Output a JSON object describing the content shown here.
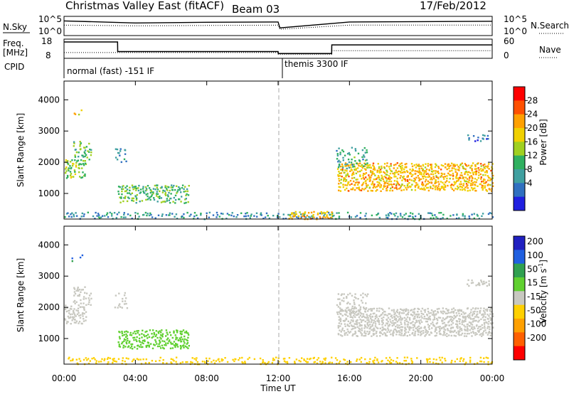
{
  "header": {
    "title": "Christmas Valley East (fitACF)",
    "beam": "Beam 03",
    "date": "17/Feb/2012"
  },
  "colors": {
    "power_scale": [
      "#2020e0",
      "#3070c0",
      "#40a0a0",
      "#30b060",
      "#a0d020",
      "#f0d000",
      "#ffa000",
      "#ff5000",
      "#ff0000"
    ],
    "velocity_scale": [
      "#2020c0",
      "#2060e0",
      "#30a050",
      "#60d030",
      "#c8c8c0",
      "#ffd000",
      "#ffa000",
      "#ff6000",
      "#ff0000"
    ]
  },
  "chart_data": [
    {
      "type": "line",
      "panel": "N.Sky / N.Search",
      "left_label": "N.Sky",
      "left_ticks": [
        "10^5",
        "10^0"
      ],
      "right_label": "N.Search",
      "right_ticks": [
        "10^5",
        "10^0"
      ],
      "x": [
        0,
        4,
        8,
        12,
        12.1,
        16,
        20,
        24
      ],
      "series": [
        {
          "values": [
            4.2,
            3.6,
            3.8,
            3.9,
            2.2,
            3.9,
            4.0,
            4.1
          ]
        },
        {
          "values": [
            3.0,
            2.8,
            2.9,
            3.0,
            1.8,
            3.0,
            3.0,
            3.0
          ]
        }
      ],
      "ylim": [
        0,
        5.5
      ]
    },
    {
      "type": "line",
      "panel": "Freq / Nave",
      "left_label": "Freq.",
      "left_unit": "[MHz]",
      "left_ticks": [
        "18",
        "8"
      ],
      "right_label": "Nave",
      "right_ticks": [
        "60",
        "0"
      ],
      "x": [
        0,
        3,
        3.01,
        12,
        12.01,
        15,
        15.01,
        24
      ],
      "series": [
        {
          "values": [
            16.5,
            16.5,
            11.5,
            11.5,
            10.5,
            10.5,
            15,
            15
          ]
        },
        {
          "values": [
            11,
            11,
            11,
            11,
            10,
            10,
            12,
            12
          ]
        }
      ],
      "ylim": [
        8,
        18
      ]
    },
    {
      "type": "text",
      "panel": "CPID",
      "label": "CPID",
      "segments": [
        {
          "start": 0,
          "end": 12,
          "text": "normal (fast) -151 IF"
        },
        {
          "start": 12,
          "end": 24,
          "text": "themis 3300 IF"
        }
      ]
    },
    {
      "type": "heatmap",
      "panel": "Power",
      "ylabel": "Slant Range [km]",
      "yticks": [
        1000,
        2000,
        3000,
        4000
      ],
      "ylim": [
        180,
        4600
      ],
      "colorbar_label": "Power [dB]",
      "colorbar_ticks": [
        "28",
        "24",
        "20",
        "16",
        "12",
        "8",
        "4"
      ],
      "clim": [
        0,
        30
      ],
      "regions": [
        {
          "t0": 0.0,
          "t1": 1.2,
          "r0": 1500,
          "r1": 2100,
          "v": 14,
          "density": 0.7
        },
        {
          "t0": 0.3,
          "t1": 1.0,
          "r0": 3500,
          "r1": 3700,
          "v": 18,
          "density": 0.6
        },
        {
          "t0": 0.5,
          "t1": 1.5,
          "r0": 2100,
          "r1": 2700,
          "v": 12,
          "density": 0.5
        },
        {
          "t0": 2.8,
          "t1": 3.5,
          "r0": 2000,
          "r1": 2500,
          "v": 8,
          "density": 0.4
        },
        {
          "t0": 3.0,
          "t1": 7.0,
          "r0": 700,
          "r1": 1300,
          "v": 12,
          "density": 0.65
        },
        {
          "t0": 0.0,
          "t1": 24.0,
          "r0": 200,
          "r1": 420,
          "v": 8,
          "density": 0.45
        },
        {
          "t0": 12.5,
          "t1": 15.0,
          "r0": 200,
          "r1": 450,
          "v": 20,
          "density": 0.55
        },
        {
          "t0": 15.3,
          "t1": 24.0,
          "r0": 1100,
          "r1": 2000,
          "v": 20,
          "density": 0.8
        },
        {
          "t0": 15.2,
          "t1": 17.0,
          "r0": 1800,
          "r1": 2500,
          "v": 10,
          "density": 0.4
        },
        {
          "t0": 22.5,
          "t1": 23.8,
          "r0": 2700,
          "r1": 2900,
          "v": 6,
          "density": 0.5
        }
      ],
      "x": [
        0,
        4,
        8,
        12,
        16,
        20,
        24
      ],
      "xlim": [
        0,
        24
      ]
    },
    {
      "type": "heatmap",
      "panel": "Velocity",
      "ylabel": "Slant Range [km]",
      "yticks": [
        1000,
        2000,
        3000,
        4000
      ],
      "ylim": [
        180,
        4600
      ],
      "colorbar_label": "Velocity [m s",
      "colorbar_label_sup": "-1",
      "colorbar_ticks": [
        "200",
        "100",
        "50",
        "15",
        "-15",
        "-50",
        "-100",
        "-200"
      ],
      "clim": [
        -250,
        250
      ],
      "regions": [
        {
          "t0": 0.0,
          "t1": 1.2,
          "r0": 1500,
          "r1": 2100,
          "v": 0,
          "density": 0.7
        },
        {
          "t0": 0.3,
          "t1": 1.0,
          "r0": 3500,
          "r1": 3700,
          "v": 150,
          "density": 0.5
        },
        {
          "t0": 0.5,
          "t1": 1.5,
          "r0": 2100,
          "r1": 2700,
          "v": 0,
          "density": 0.5
        },
        {
          "t0": 2.8,
          "t1": 3.5,
          "r0": 2000,
          "r1": 2500,
          "v": 0,
          "density": 0.4
        },
        {
          "t0": 3.0,
          "t1": 7.0,
          "r0": 700,
          "r1": 1300,
          "v": 60,
          "density": 0.7
        },
        {
          "t0": 0.0,
          "t1": 24.0,
          "r0": 200,
          "r1": 420,
          "v": -60,
          "density": 0.45
        },
        {
          "t0": 15.3,
          "t1": 24.0,
          "r0": 1100,
          "r1": 2000,
          "v": 0,
          "density": 0.85
        },
        {
          "t0": 15.2,
          "t1": 17.0,
          "r0": 1800,
          "r1": 2500,
          "v": 0,
          "density": 0.4
        },
        {
          "t0": 22.5,
          "t1": 23.8,
          "r0": 2700,
          "r1": 2900,
          "v": 0,
          "density": 0.5
        }
      ],
      "x": [
        0,
        4,
        8,
        12,
        16,
        20,
        24
      ],
      "xlim": [
        0,
        24
      ],
      "xticklabels": [
        "00:00",
        "04:00",
        "08:00",
        "12:00",
        "16:00",
        "20:00",
        "00:00"
      ],
      "xlabel": "Time UT"
    }
  ]
}
